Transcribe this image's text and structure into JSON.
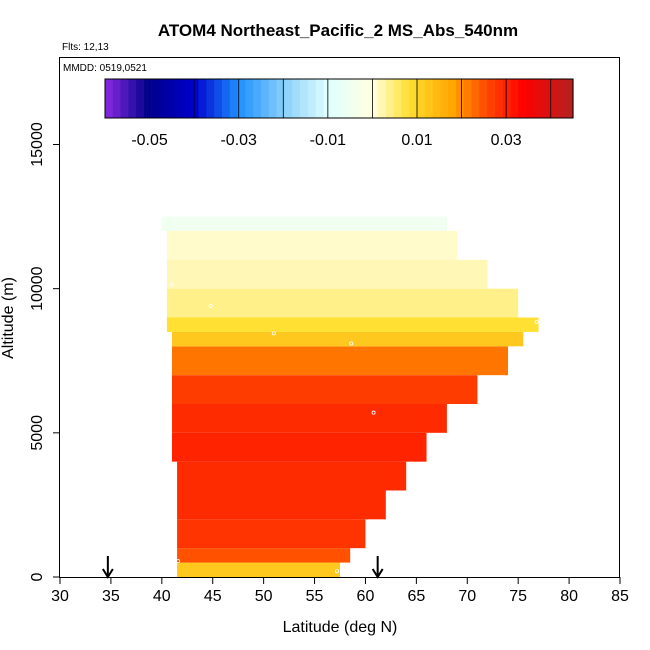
{
  "chart_data": {
    "type": "heatmap",
    "title": "ATOM4 Northeast_Pacific_2 MS_Abs_540nm",
    "flights_label": "Flts: 12,13",
    "dates_label": "MMDD: 0519,0521",
    "xlabel": "Latitude (deg N)",
    "ylabel": "Altitude (m)",
    "xlim": [
      30,
      85
    ],
    "ylim": [
      0,
      18000
    ],
    "x_ticks": [
      "30",
      "35",
      "40",
      "45",
      "50",
      "55",
      "60",
      "65",
      "70",
      "75",
      "80",
      "85"
    ],
    "y_ticks": [
      "0",
      "5000",
      "10000",
      "15000"
    ],
    "colorbar": {
      "range": [
        -0.06,
        0.045
      ],
      "tick_labels": [
        "-0.05",
        "-0.03",
        "-0.01",
        "0.01",
        "0.03"
      ],
      "tick_values": [
        -0.05,
        -0.03,
        -0.01,
        0.01,
        0.03
      ],
      "color_stops": [
        {
          "v": -0.06,
          "c": "#8a2be2"
        },
        {
          "v": -0.05,
          "c": "#00008b"
        },
        {
          "v": -0.04,
          "c": "#0000cd"
        },
        {
          "v": -0.03,
          "c": "#1e90ff"
        },
        {
          "v": -0.02,
          "c": "#87cefa"
        },
        {
          "v": -0.01,
          "c": "#e0ffff"
        },
        {
          "v": 0.0,
          "c": "#ffffe0"
        },
        {
          "v": 0.008,
          "c": "#ffe033"
        },
        {
          "v": 0.018,
          "c": "#ffa500"
        },
        {
          "v": 0.026,
          "c": "#ff4500"
        },
        {
          "v": 0.034,
          "c": "#ff0000"
        },
        {
          "v": 0.045,
          "c": "#b22222"
        }
      ]
    },
    "grid_regions": [
      {
        "lat": [
          41.5,
          57.5
        ],
        "alt": [
          0,
          500
        ],
        "value": 0.012
      },
      {
        "lat": [
          41.5,
          58.5
        ],
        "alt": [
          500,
          1000
        ],
        "value": 0.025
      },
      {
        "lat": [
          41.5,
          60.0
        ],
        "alt": [
          1000,
          2000
        ],
        "value": 0.028
      },
      {
        "lat": [
          41.5,
          62.0
        ],
        "alt": [
          2000,
          3000
        ],
        "value": 0.029
      },
      {
        "lat": [
          41.5,
          64.0
        ],
        "alt": [
          3000,
          4000
        ],
        "value": 0.029
      },
      {
        "lat": [
          41.0,
          66.0
        ],
        "alt": [
          4000,
          5000
        ],
        "value": 0.03
      },
      {
        "lat": [
          41.0,
          68.0
        ],
        "alt": [
          5000,
          6000
        ],
        "value": 0.029
      },
      {
        "lat": [
          41.0,
          71.0
        ],
        "alt": [
          6000,
          7000
        ],
        "value": 0.027
      },
      {
        "lat": [
          41.0,
          74.0
        ],
        "alt": [
          7000,
          8000
        ],
        "value": 0.022
      },
      {
        "lat": [
          41.0,
          75.5
        ],
        "alt": [
          8000,
          8500
        ],
        "value": 0.012
      },
      {
        "lat": [
          40.5,
          77.0
        ],
        "alt": [
          8500,
          9000
        ],
        "value": 0.008
      },
      {
        "lat": [
          40.5,
          75.0
        ],
        "alt": [
          9000,
          10000
        ],
        "value": 0.004
      },
      {
        "lat": [
          40.5,
          72.0
        ],
        "alt": [
          10000,
          11000
        ],
        "value": 0.002
      },
      {
        "lat": [
          40.5,
          69.0
        ],
        "alt": [
          11000,
          12000
        ],
        "value": 0.001
      },
      {
        "lat": [
          40.0,
          68.0
        ],
        "alt": [
          12000,
          12500
        ],
        "value": -0.005
      }
    ],
    "markers": [
      {
        "lat": 41.0,
        "alt": 10150
      },
      {
        "lat": 44.8,
        "alt": 9400
      },
      {
        "lat": 51.0,
        "alt": 8450
      },
      {
        "lat": 58.6,
        "alt": 8100
      },
      {
        "lat": 60.8,
        "alt": 5700
      },
      {
        "lat": 41.6,
        "alt": 550
      },
      {
        "lat": 57.2,
        "alt": 200
      },
      {
        "lat": 76.8,
        "alt": 8850
      }
    ],
    "arrows": [
      34.7,
      61.2
    ]
  }
}
